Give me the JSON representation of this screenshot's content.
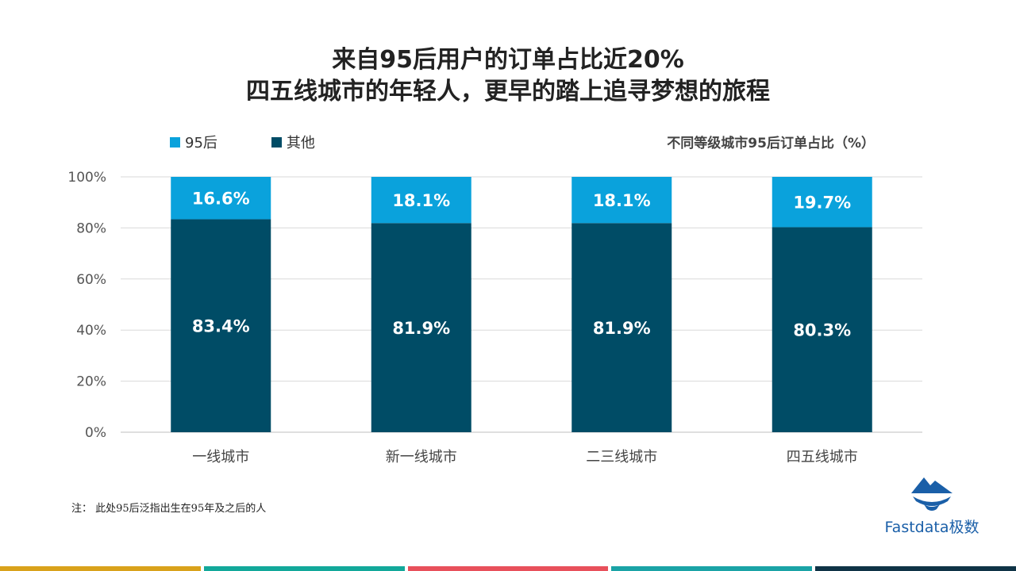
{
  "title": {
    "line1": "来自95后用户的订单占比近20%",
    "line2": "四五线城市的年轻人，更早的踏上追寻梦想的旅程"
  },
  "legend": [
    {
      "label": "95后",
      "color": "#0aa2dc"
    },
    {
      "label": "其他",
      "color": "#004c66"
    }
  ],
  "chart_subtitle": "不同等级城市95后订单占比（%）",
  "chart_data": {
    "type": "bar",
    "stacked": true,
    "categories": [
      "一线城市",
      "新一线城市",
      "二三线城市",
      "四五线城市"
    ],
    "series": [
      {
        "name": "其他",
        "values": [
          83.4,
          81.9,
          81.9,
          80.3
        ],
        "labels": [
          "83.4%",
          "81.9%",
          "81.9%",
          "80.3%"
        ],
        "color": "#004c66"
      },
      {
        "name": "95后",
        "values": [
          16.6,
          18.1,
          18.1,
          19.7
        ],
        "labels": [
          "16.6%",
          "18.1%",
          "18.1%",
          "19.7%"
        ],
        "color": "#0aa2dc"
      }
    ],
    "ylim": [
      0,
      100
    ],
    "yticks": [
      "0%",
      "20%",
      "40%",
      "60%",
      "80%",
      "100%"
    ],
    "grid": true,
    "legend_position": "top-left"
  },
  "footnote": "注： 此处95后泛指出生在95年及之后的人",
  "logo": {
    "text": "Fastdata极数"
  },
  "bottom_bar_colors": [
    "#d9a21b",
    "#12a89a",
    "#e8505b",
    "#1aa3a6",
    "#0f3346"
  ]
}
